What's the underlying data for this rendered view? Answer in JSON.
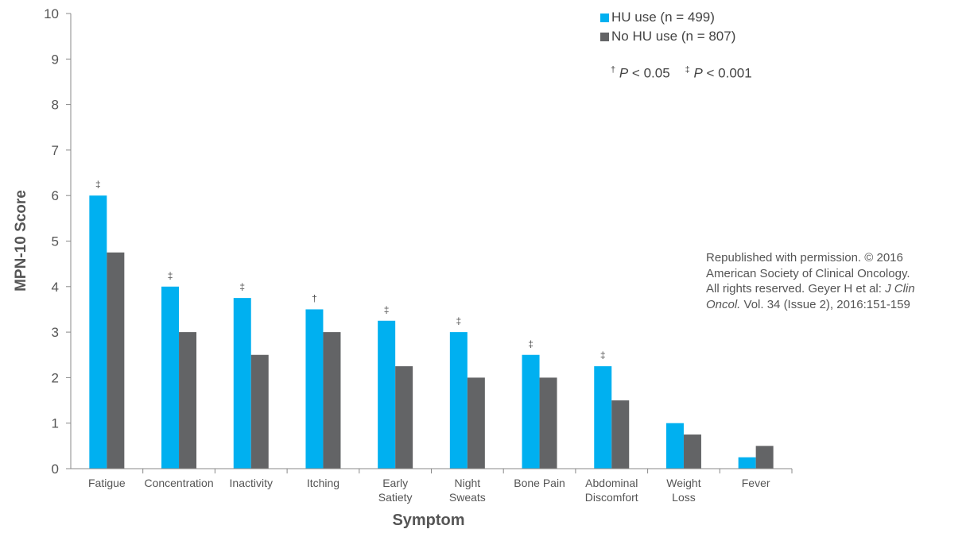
{
  "chart_data": {
    "type": "bar",
    "title": "",
    "xlabel": "Symptom",
    "ylabel": "MPN-10 Score",
    "ylim": [
      0,
      10
    ],
    "yticks": [
      "0",
      "1",
      "2",
      "3",
      "4",
      "5",
      "6",
      "7",
      "8",
      "9",
      "10"
    ],
    "grid": false,
    "legend_position": "top-right",
    "categories": [
      [
        "Fatigue"
      ],
      [
        "Concentration"
      ],
      [
        "Inactivity"
      ],
      [
        "Itching"
      ],
      [
        "Early",
        "Satiety"
      ],
      [
        "Night",
        "Sweats"
      ],
      [
        "Bone Pain"
      ],
      [
        "Abdominal",
        "Discomfort"
      ],
      [
        "Weight",
        "Loss"
      ],
      [
        "Fever"
      ]
    ],
    "series": [
      {
        "name": "HU use (n = 499)",
        "color": "#00b0f0",
        "values": [
          6.0,
          4.0,
          3.75,
          3.5,
          3.25,
          3.0,
          2.5,
          2.25,
          1.0,
          0.25
        ]
      },
      {
        "name": "No HU use (n = 807)",
        "color": "#636466",
        "values": [
          4.75,
          3.0,
          2.5,
          3.0,
          2.25,
          2.0,
          2.0,
          1.5,
          0.75,
          0.5
        ]
      }
    ],
    "significance": [
      "‡",
      "‡",
      "‡",
      "†",
      "‡",
      "‡",
      "‡",
      "‡",
      "",
      ""
    ],
    "annotations": {
      "p_dagger_symbol": "†",
      "p_dagger_text": " < 0.05",
      "p_ddagger_symbol": "‡",
      "p_ddagger_text": " < 0.001",
      "p_letter": "P"
    }
  },
  "permission": {
    "line1": "Republished with permission. © 2016",
    "line2": "American Society of Clinical Oncology.",
    "line3_pre": "All rights reserved. Geyer H et al: ",
    "line3_italic": "J Clin",
    "line4_italic": "Oncol.",
    "line4_post": " Vol. 34 (Issue 2), 2016:151-159"
  }
}
